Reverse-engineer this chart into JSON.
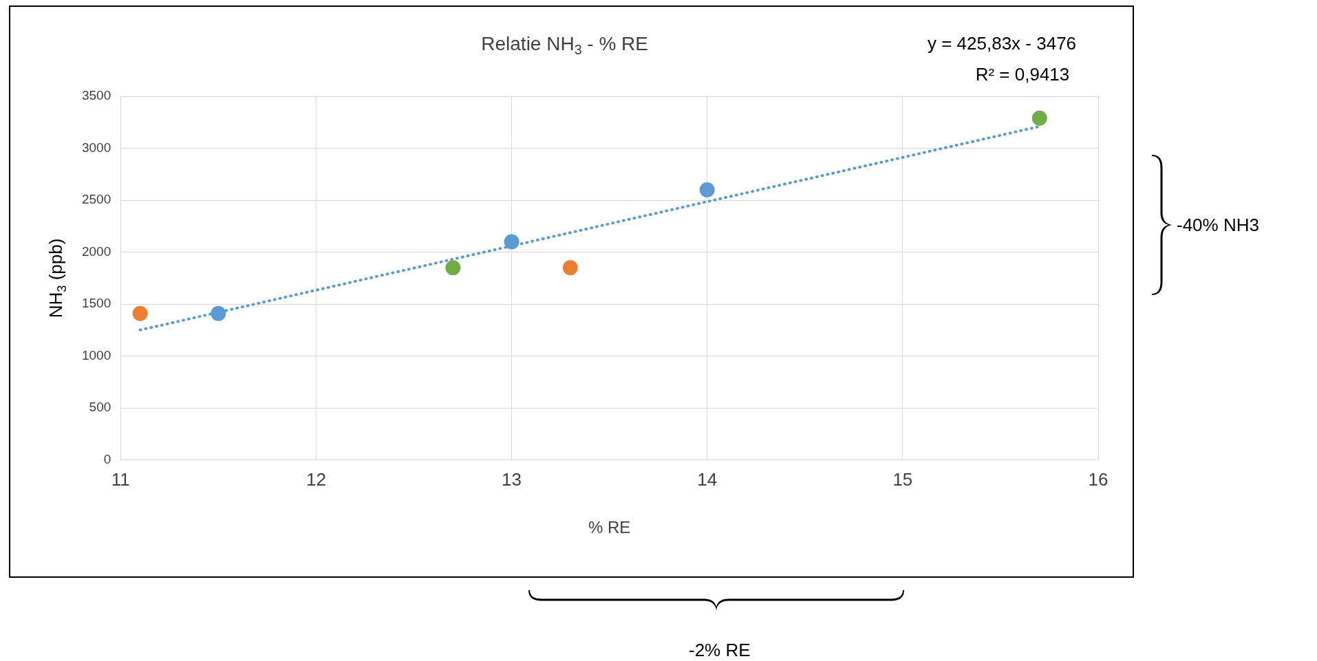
{
  "chart_data": {
    "type": "scatter",
    "title": "Relatie NH$_{3}$ - % RE",
    "xlabel": "% RE",
    "ylabel": "NH$_{3}$ (ppb)",
    "xlim": [
      11,
      16
    ],
    "xticks": [
      11,
      12,
      13,
      14,
      15,
      16
    ],
    "ylim": [
      0,
      3500
    ],
    "yticks": [
      0,
      500,
      1000,
      1500,
      2000,
      2500,
      3000,
      3500
    ],
    "grid": true,
    "legend": false,
    "marker": "circle",
    "series": [
      {
        "color": "#5b9bd5",
        "x": [
          11.5,
          13,
          14
        ],
        "values": [
          1410,
          2100,
          2600
        ]
      },
      {
        "color": "#ed7d31",
        "x": [
          11.1,
          13.3
        ],
        "values": [
          1410,
          1850
        ]
      },
      {
        "color": "#70ad47",
        "x": [
          12.7,
          15.7
        ],
        "values": [
          1850,
          3290
        ]
      },
      {
        "type": "line",
        "color": "#5b9bd5",
        "line_style": "dotted",
        "marker": "none",
        "x": [
          11.1,
          15.7
        ],
        "values": [
          1251,
          3210
        ]
      }
    ],
    "annotations": [
      "y = 425,83x - 3476",
      "R² = 0,9413",
      "-40% NH3",
      "-2% RE"
    ]
  }
}
